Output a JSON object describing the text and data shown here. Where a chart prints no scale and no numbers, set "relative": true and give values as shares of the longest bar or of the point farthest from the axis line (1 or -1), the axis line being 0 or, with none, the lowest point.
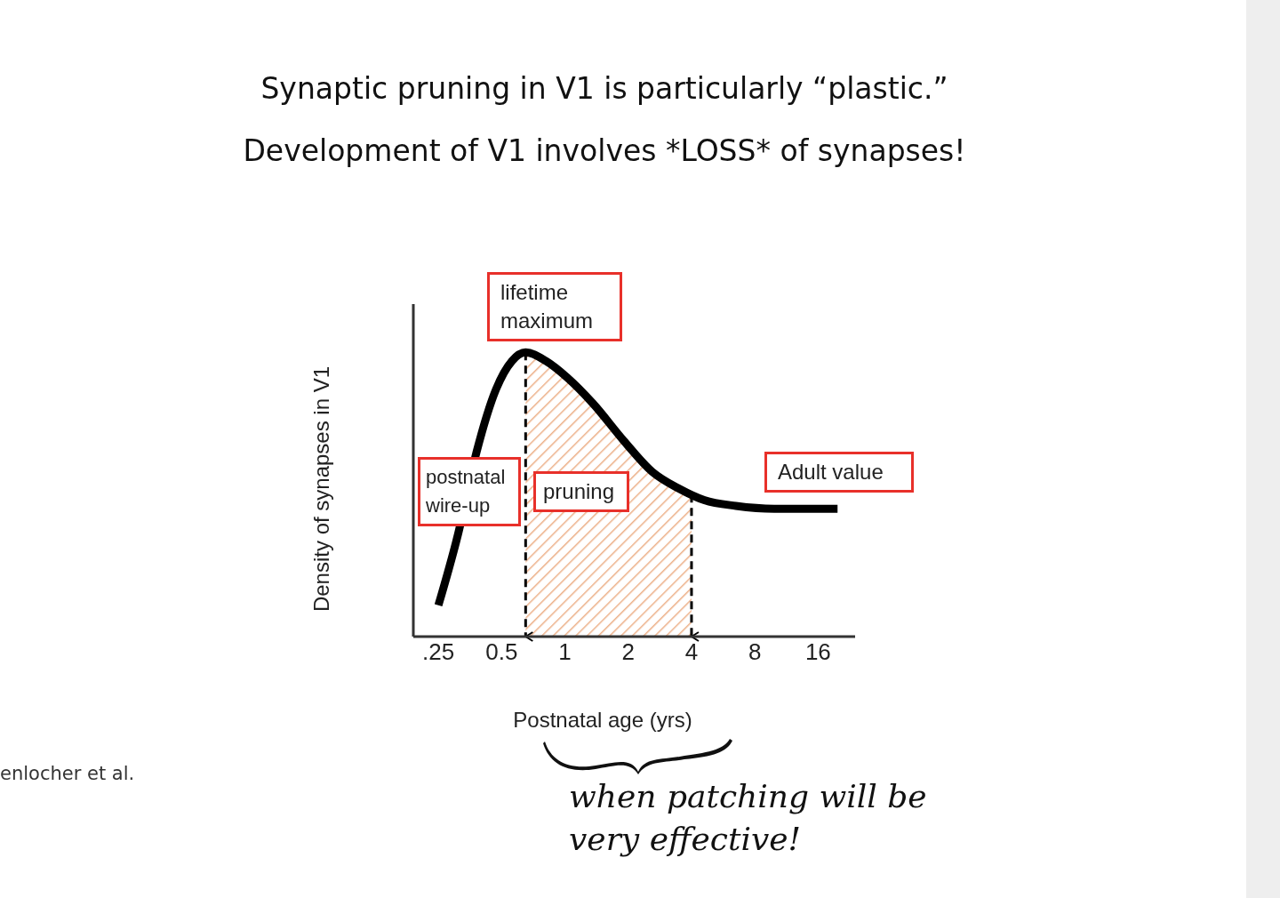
{
  "chart_data": {
    "type": "line",
    "title": "Synaptic pruning in V1 is particularly “plastic.”",
    "subtitle": "Development of V1 involves *LOSS* of synapses!",
    "xlabel": "Postnatal age (yrs)",
    "ylabel": "Density of synapses in V1",
    "relative": true,
    "log": "x",
    "xlim": [
      0.19,
      24
    ],
    "xticks": [
      {
        "value": 0.25,
        "label": ".25"
      },
      0.5,
      1,
      2,
      4,
      8,
      16
    ],
    "series": [
      {
        "type": "area",
        "color": "#e07b39",
        "x": [
          0.65,
          0.81,
          1.03,
          1.36,
          1.9,
          2.6,
          3.5,
          4.0
        ],
        "values": [
          1,
          0.97,
          0.91,
          0.82,
          0.69,
          0.58,
          0.52,
          0.5
        ]
      },
      {
        "color": "#000000",
        "x": [
          0.25,
          0.31,
          0.38,
          0.47,
          0.56,
          0.65,
          0.81,
          1.03,
          1.36,
          1.9,
          2.6,
          3.5,
          4.6,
          6.5,
          9.9,
          14.5,
          19.8
        ],
        "values": [
          0.11,
          0.36,
          0.65,
          0.87,
          0.97,
          1,
          0.97,
          0.91,
          0.82,
          0.69,
          0.58,
          0.52,
          0.48,
          0.46,
          0.45,
          0.45,
          0.45
        ]
      }
    ],
    "annotations": [
      "lifetime maximum",
      "pruning",
      "postnatal wire-up",
      "Adult value",
      "enlocher et al.",
      "when patching will be very effective!"
    ],
    "ref_lines": [
      {
        "axis": "x",
        "value": 0.65,
        "color": "#000000",
        "line_style": "dashed"
      },
      {
        "axis": "x",
        "value": 4.0,
        "color": "#000000",
        "line_style": "dashed"
      }
    ],
    "grid": false,
    "legend": false,
    "marker": "none"
  }
}
